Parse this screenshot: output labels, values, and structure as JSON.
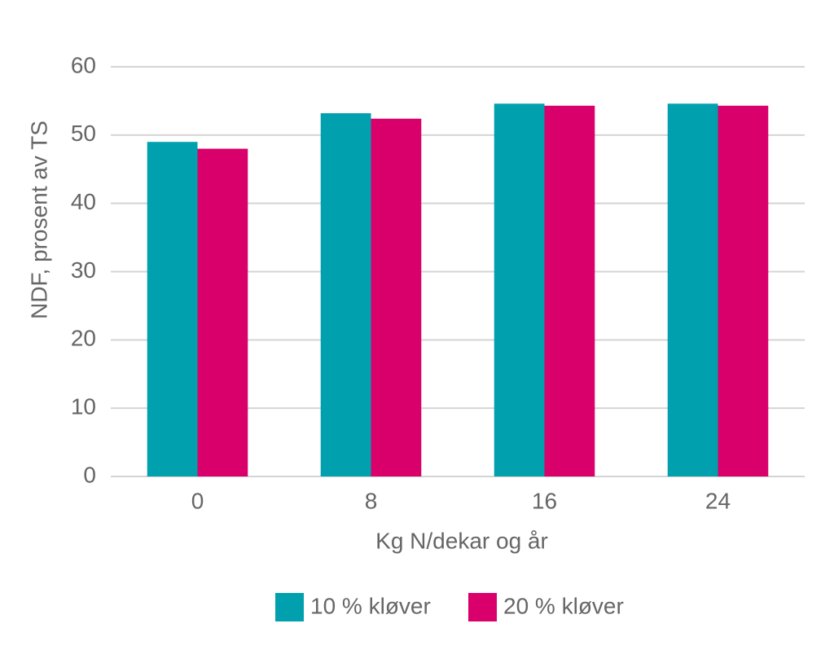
{
  "chart_data": {
    "type": "bar",
    "x_label": "Kg N/dekar og år",
    "y_label": "NDF, prosent av TS",
    "categories": [
      "0",
      "8",
      "16",
      "24"
    ],
    "series": [
      {
        "name": "10 % kløver",
        "color": "#00a0ae",
        "values": [
          49.0,
          53.2,
          54.6,
          54.6
        ]
      },
      {
        "name": "20 % kløver",
        "color": "#d9006c",
        "values": [
          48.0,
          52.4,
          54.3,
          54.3
        ]
      }
    ],
    "ylim": [
      0,
      60
    ],
    "yticks": [
      0,
      10,
      20,
      30,
      40,
      50,
      60
    ],
    "grid": true,
    "legend": "bottom"
  }
}
